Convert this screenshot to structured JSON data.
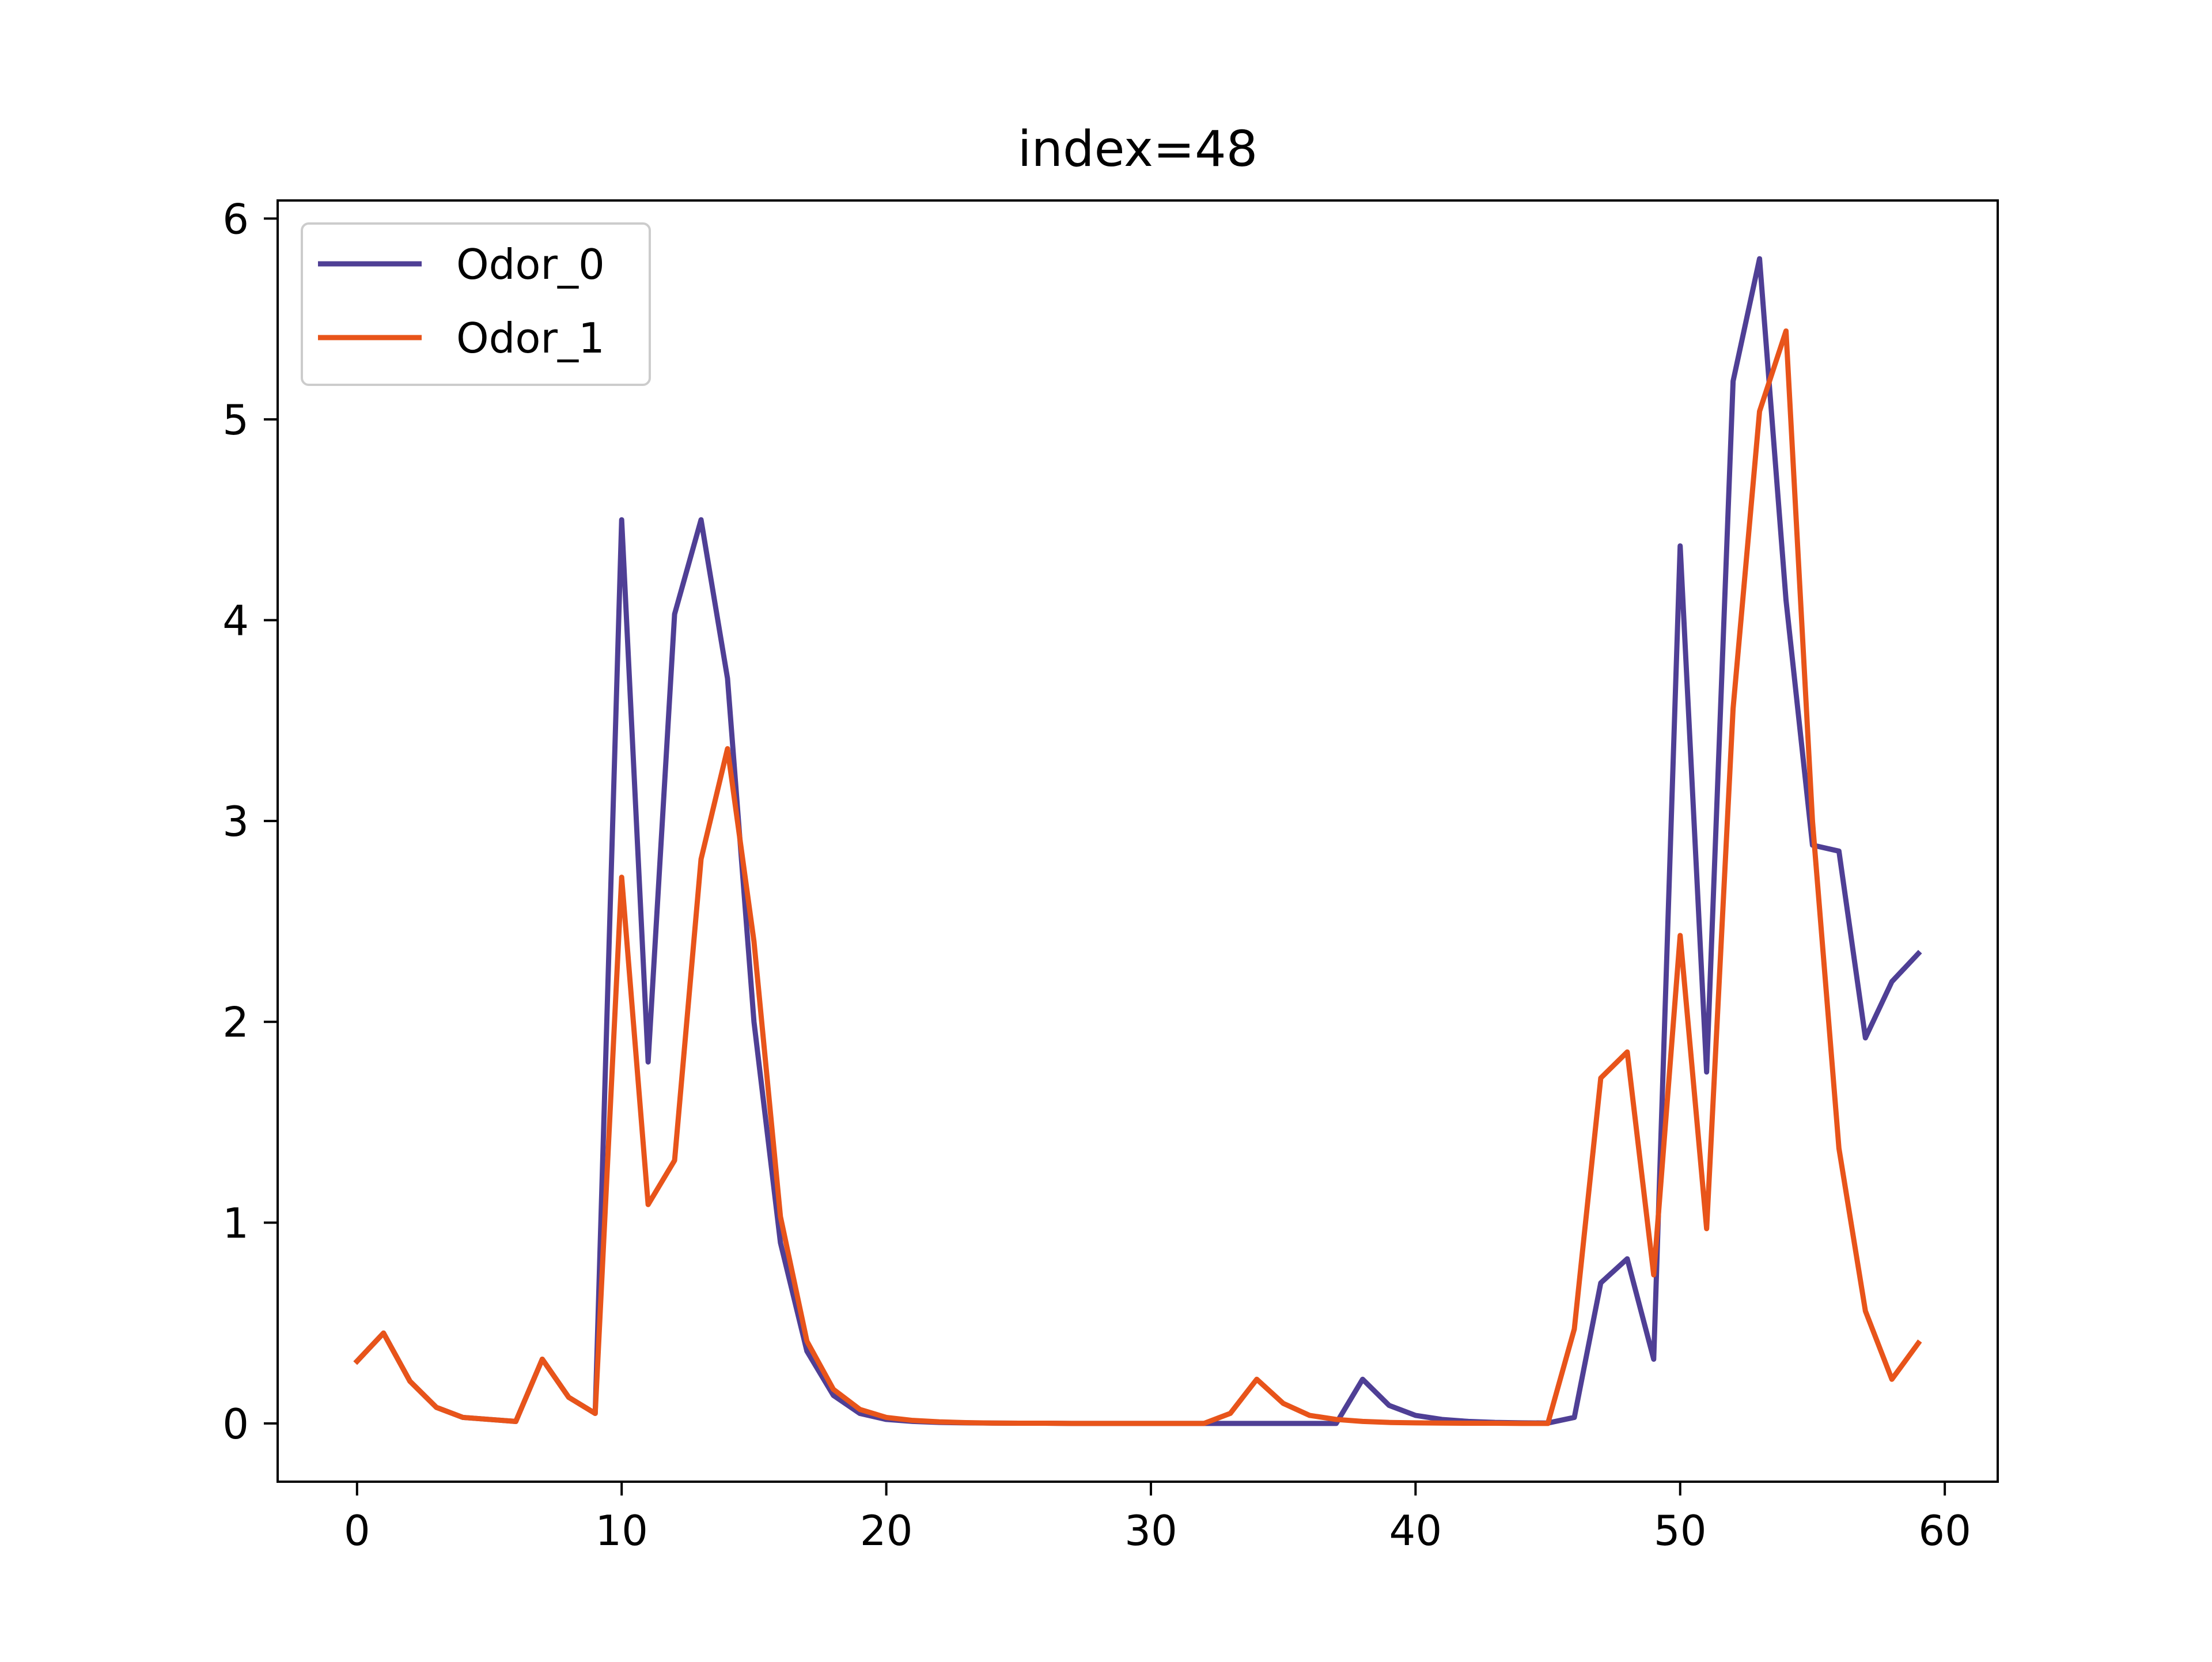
{
  "chart_data": {
    "type": "line",
    "title": "index=48",
    "xlabel": "",
    "ylabel": "",
    "xlim": [
      -3,
      62
    ],
    "ylim": [
      -0.29,
      6.09
    ],
    "xticks": [
      0,
      10,
      20,
      30,
      40,
      50,
      60
    ],
    "yticks": [
      0,
      1,
      2,
      3,
      4,
      5,
      6
    ],
    "grid": false,
    "legend_position": "top-left",
    "x": [
      0,
      1,
      2,
      3,
      4,
      5,
      6,
      7,
      8,
      9,
      10,
      11,
      12,
      13,
      14,
      15,
      16,
      17,
      18,
      19,
      20,
      21,
      22,
      23,
      24,
      25,
      26,
      27,
      28,
      29,
      30,
      31,
      32,
      33,
      34,
      35,
      36,
      37,
      38,
      39,
      40,
      41,
      42,
      43,
      44,
      45,
      46,
      47,
      48,
      49,
      50,
      51,
      52,
      53,
      54,
      55,
      56,
      57,
      58,
      59
    ],
    "series": [
      {
        "name": "Odor_0",
        "color": "#4f3f95",
        "values": [
          0.31,
          0.45,
          0.21,
          0.08,
          0.03,
          0.02,
          0.01,
          0.32,
          0.13,
          0.05,
          4.5,
          1.8,
          4.03,
          4.5,
          3.71,
          2.0,
          0.9,
          0.36,
          0.14,
          0.05,
          0.02,
          0.01,
          0.005,
          0.003,
          0.002,
          0.001,
          0.001,
          0.0,
          0.0,
          0.0,
          0.0,
          0.0,
          0.0,
          0.0,
          0.0,
          0.0,
          0.0,
          0.0,
          0.22,
          0.09,
          0.04,
          0.02,
          0.01,
          0.005,
          0.003,
          0.002,
          0.03,
          0.7,
          0.82,
          0.32,
          4.37,
          1.75,
          5.19,
          5.8,
          4.1,
          2.88,
          2.85,
          1.92,
          2.2,
          2.34
        ]
      },
      {
        "name": "Odor_1",
        "color": "#e8541a",
        "values": [
          0.31,
          0.45,
          0.21,
          0.08,
          0.03,
          0.02,
          0.01,
          0.32,
          0.13,
          0.05,
          2.72,
          1.09,
          1.31,
          2.81,
          3.36,
          2.4,
          1.03,
          0.41,
          0.17,
          0.07,
          0.03,
          0.015,
          0.008,
          0.004,
          0.002,
          0.001,
          0.001,
          0.0,
          0.0,
          0.0,
          0.0,
          0.0,
          0.0,
          0.05,
          0.22,
          0.1,
          0.04,
          0.02,
          0.01,
          0.005,
          0.003,
          0.002,
          0.001,
          0.001,
          0.0,
          0.0,
          0.47,
          1.72,
          1.85,
          0.74,
          2.43,
          0.97,
          3.56,
          5.04,
          5.44,
          3.0,
          1.37,
          0.56,
          0.22,
          0.4
        ]
      }
    ]
  }
}
